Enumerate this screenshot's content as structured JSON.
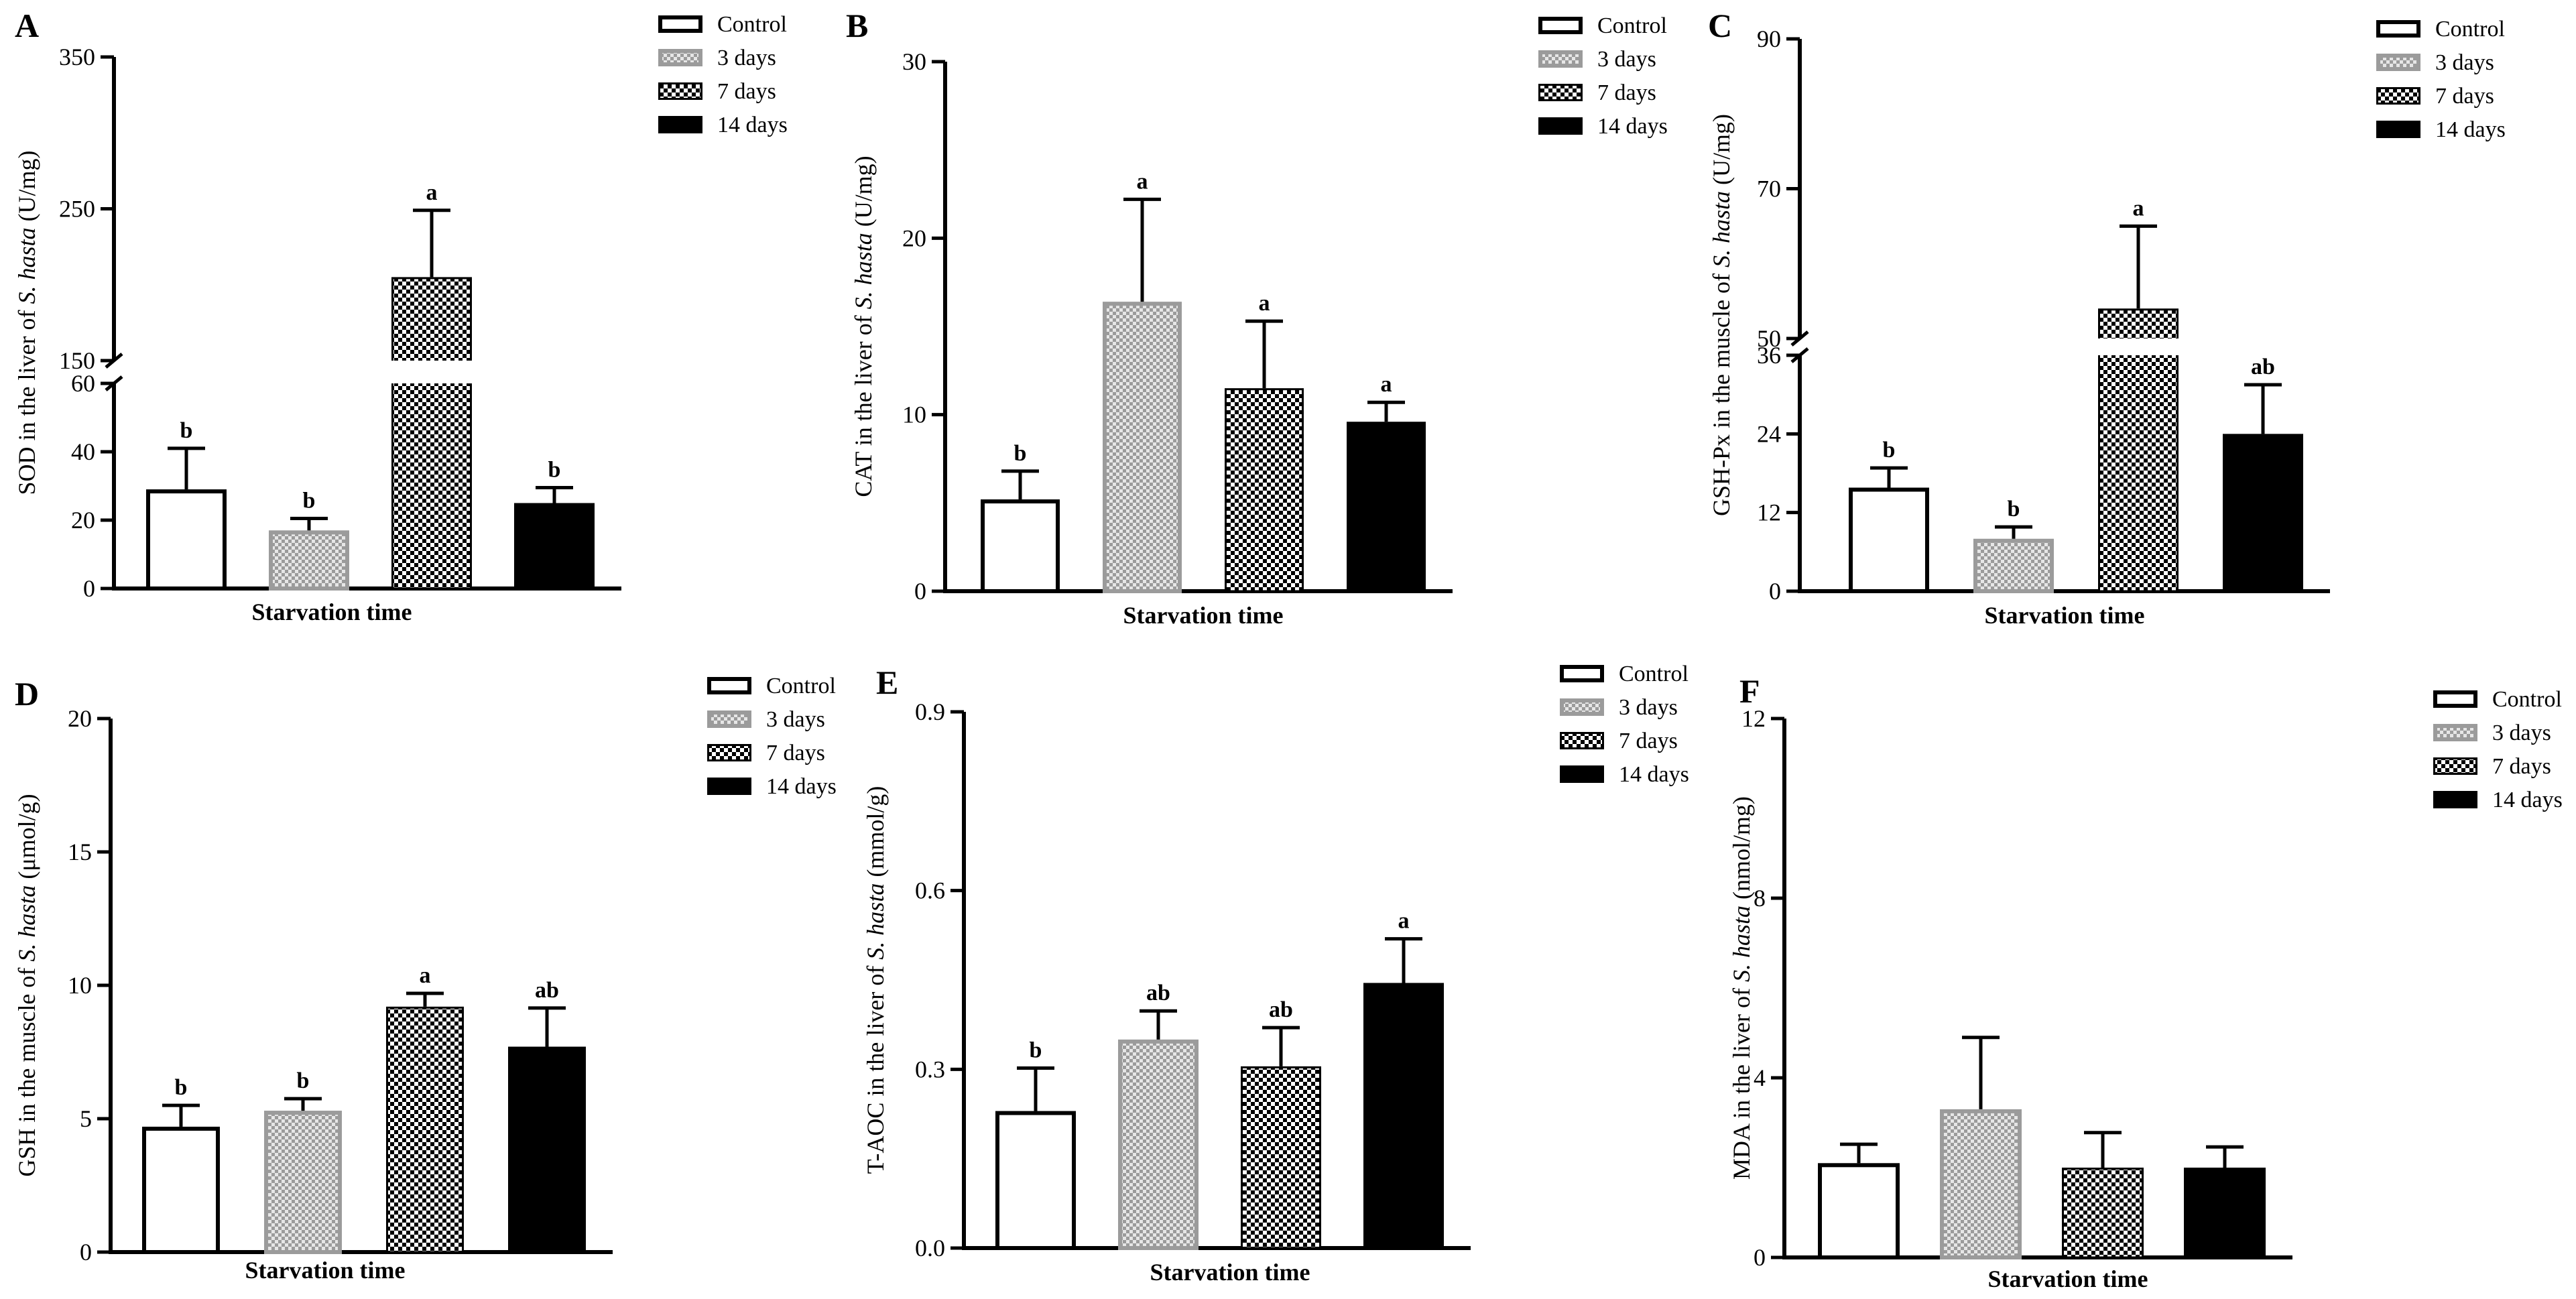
{
  "figure": {
    "x_axis_title": "Starvation time",
    "species": "S. hasta",
    "legend_items": [
      "Control",
      "3 days",
      "7 days",
      "14 days"
    ]
  },
  "colors": {
    "control_fill": "#ffffff",
    "three_days": "#9b9b9b",
    "seven_days": "#000000",
    "fourteen_days": "#000000",
    "axis": "#000000"
  },
  "chart_data": [
    {
      "panel": "A",
      "type": "bar",
      "ylabel_prefix": "SOD in the liver of ",
      "ylabel_unit": " (U/mg)",
      "xlabel": "Starvation time",
      "categories": [
        "Control",
        "3 days",
        "7 days",
        "14 days"
      ],
      "values": [
        29,
        17,
        205,
        25
      ],
      "errors": [
        12,
        3.5,
        44,
        4.5
      ],
      "sig": [
        "b",
        "b",
        "a",
        "b"
      ],
      "axis_break": true,
      "lower_range": [
        0,
        60
      ],
      "upper_range": [
        150,
        350
      ],
      "lower_ticks": [
        0,
        20,
        40,
        60
      ],
      "upper_ticks": [
        150,
        250,
        350
      ]
    },
    {
      "panel": "B",
      "type": "bar",
      "ylabel_prefix": "CAT in the liver of ",
      "ylabel_unit": " (U/mg)",
      "xlabel": "Starvation time",
      "categories": [
        "Control",
        "3 days",
        "7 days",
        "14 days"
      ],
      "values": [
        5.2,
        16.4,
        11.5,
        9.6
      ],
      "errors": [
        1.6,
        5.8,
        3.8,
        1.1
      ],
      "sig": [
        "b",
        "a",
        "a",
        "a"
      ],
      "ylim": [
        0,
        30
      ],
      "ticks": [
        0,
        10,
        20,
        30
      ]
    },
    {
      "panel": "C",
      "type": "bar",
      "ylabel_prefix": "GSH-Px in the muscle of ",
      "ylabel_unit": " (U/mg)",
      "xlabel": "Starvation time",
      "categories": [
        "Control",
        "3 days",
        "7 days",
        "14 days"
      ],
      "values": [
        15.8,
        8,
        54,
        24
      ],
      "errors": [
        3,
        1.8,
        11,
        7.5
      ],
      "sig": [
        "b",
        "b",
        "a",
        "ab"
      ],
      "axis_break": true,
      "lower_range": [
        0,
        36
      ],
      "upper_range": [
        50,
        90
      ],
      "lower_ticks": [
        0,
        12,
        24,
        36
      ],
      "upper_ticks": [
        50,
        70,
        90
      ]
    },
    {
      "panel": "D",
      "type": "bar",
      "ylabel_prefix": "GSH in the muscle of ",
      "ylabel_unit": " (μmol/g)",
      "xlabel": "Starvation time",
      "categories": [
        "Control",
        "3 days",
        "7 days",
        "14 days"
      ],
      "values": [
        4.7,
        5.3,
        9.2,
        7.7
      ],
      "errors": [
        0.8,
        0.45,
        0.5,
        1.45
      ],
      "sig": [
        "b",
        "b",
        "a",
        "ab"
      ],
      "ylim": [
        0,
        20
      ],
      "ticks": [
        0,
        5,
        10,
        15,
        20
      ]
    },
    {
      "panel": "E",
      "type": "bar",
      "ylabel_prefix": "T-AOC in the liver of ",
      "ylabel_unit": " (mmol/g)",
      "xlabel": "Starvation time",
      "categories": [
        "Control",
        "3 days",
        "7 days",
        "14 days"
      ],
      "values": [
        0.23,
        0.35,
        0.305,
        0.445
      ],
      "errors": [
        0.072,
        0.048,
        0.065,
        0.074
      ],
      "sig": [
        "b",
        "ab",
        "ab",
        "a"
      ],
      "ylim": [
        0,
        0.9
      ],
      "ticks": [
        0.0,
        0.3,
        0.6,
        0.9
      ],
      "tick_labels": [
        "0.0",
        "0.3",
        "0.6",
        "0.9"
      ]
    },
    {
      "panel": "F",
      "type": "bar",
      "ylabel_prefix": "MDA in the liver of ",
      "ylabel_unit": " (nmol/mg)",
      "xlabel": "Starvation time",
      "categories": [
        "Control",
        "3 days",
        "7 days",
        "14 days"
      ],
      "values": [
        2.1,
        3.3,
        2.0,
        2.0
      ],
      "errors": [
        0.42,
        1.6,
        0.78,
        0.46
      ],
      "sig": [
        "",
        "",
        "",
        ""
      ],
      "ylim": [
        0,
        12
      ],
      "ticks": [
        0,
        4,
        8,
        12
      ]
    }
  ]
}
